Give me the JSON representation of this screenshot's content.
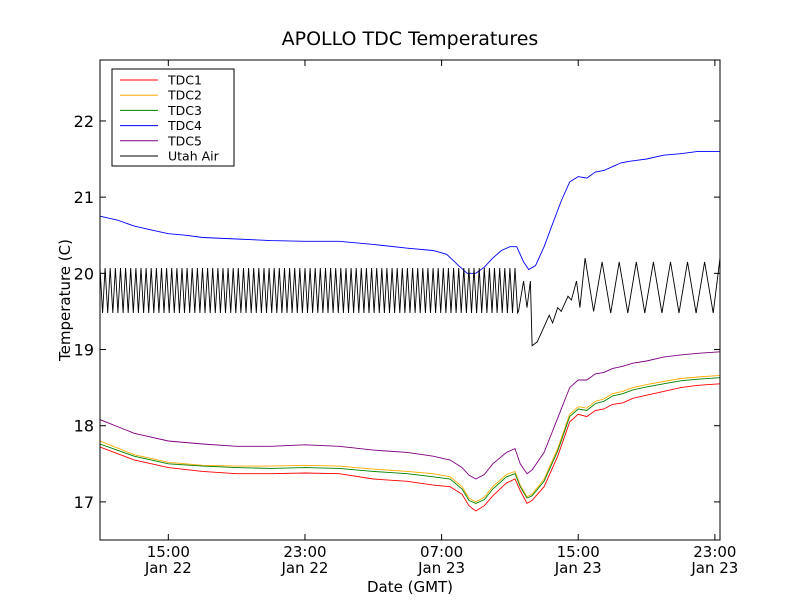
{
  "chart_data": {
    "type": "line",
    "title": "APOLLO TDC Temperatures",
    "xlabel": "Date (GMT)",
    "ylabel": "Temperature (C)",
    "x_unit": "hours since Jan 22 00:00 GMT",
    "xlim": [
      11.0,
      47.3
    ],
    "ylim": [
      16.5,
      22.8
    ],
    "x_ticks": [
      {
        "value": 15,
        "time": "15:00",
        "date": "Jan 22"
      },
      {
        "value": 23,
        "time": "23:00",
        "date": "Jan 22"
      },
      {
        "value": 31,
        "time": "07:00",
        "date": "Jan 23"
      },
      {
        "value": 39,
        "time": "15:00",
        "date": "Jan 23"
      },
      {
        "value": 47,
        "time": "23:00",
        "date": "Jan 23"
      }
    ],
    "y_ticks": [
      "17",
      "18",
      "19",
      "20",
      "21",
      "22"
    ],
    "legend_position": "top-left",
    "series": [
      {
        "name": "TDC1",
        "color": "#ff0000",
        "points": [
          [
            11.0,
            17.72
          ],
          [
            13,
            17.55
          ],
          [
            15,
            17.45
          ],
          [
            17,
            17.4
          ],
          [
            19,
            17.37
          ],
          [
            21,
            17.37
          ],
          [
            23,
            17.38
          ],
          [
            25,
            17.37
          ],
          [
            27,
            17.3
          ],
          [
            29,
            17.27
          ],
          [
            30.5,
            17.22
          ],
          [
            31.5,
            17.2
          ],
          [
            32.2,
            17.1
          ],
          [
            32.6,
            16.95
          ],
          [
            33,
            16.88
          ],
          [
            33.5,
            16.95
          ],
          [
            34,
            17.08
          ],
          [
            34.8,
            17.25
          ],
          [
            35.3,
            17.3
          ],
          [
            35.6,
            17.15
          ],
          [
            36,
            16.98
          ],
          [
            36.3,
            17.02
          ],
          [
            37,
            17.2
          ],
          [
            37.8,
            17.6
          ],
          [
            38.5,
            18.05
          ],
          [
            39,
            18.15
          ],
          [
            39.5,
            18.12
          ],
          [
            40,
            18.2
          ],
          [
            40.5,
            18.22
          ],
          [
            41,
            18.28
          ],
          [
            41.6,
            18.3
          ],
          [
            42.2,
            18.36
          ],
          [
            43,
            18.4
          ],
          [
            44,
            18.45
          ],
          [
            45,
            18.5
          ],
          [
            46,
            18.53
          ],
          [
            47.3,
            18.55
          ]
        ]
      },
      {
        "name": "TDC2",
        "color": "#ffaa00",
        "points": [
          [
            11.0,
            17.8
          ],
          [
            13,
            17.62
          ],
          [
            15,
            17.52
          ],
          [
            17,
            17.48
          ],
          [
            19,
            17.47
          ],
          [
            21,
            17.47
          ],
          [
            23,
            17.48
          ],
          [
            25,
            17.47
          ],
          [
            27,
            17.43
          ],
          [
            29,
            17.4
          ],
          [
            30.5,
            17.37
          ],
          [
            31.5,
            17.33
          ],
          [
            32.2,
            17.2
          ],
          [
            32.6,
            17.05
          ],
          [
            33,
            17.0
          ],
          [
            33.5,
            17.06
          ],
          [
            34,
            17.2
          ],
          [
            34.8,
            17.36
          ],
          [
            35.3,
            17.4
          ],
          [
            35.6,
            17.22
          ],
          [
            36,
            17.07
          ],
          [
            36.3,
            17.1
          ],
          [
            37,
            17.3
          ],
          [
            37.8,
            17.7
          ],
          [
            38.5,
            18.15
          ],
          [
            39,
            18.25
          ],
          [
            39.5,
            18.23
          ],
          [
            40,
            18.32
          ],
          [
            40.5,
            18.35
          ],
          [
            41,
            18.42
          ],
          [
            41.6,
            18.45
          ],
          [
            42.2,
            18.5
          ],
          [
            43,
            18.54
          ],
          [
            44,
            18.58
          ],
          [
            45,
            18.62
          ],
          [
            46,
            18.64
          ],
          [
            47.3,
            18.66
          ]
        ]
      },
      {
        "name": "TDC3",
        "color": "#008000",
        "points": [
          [
            11.0,
            17.76
          ],
          [
            13,
            17.6
          ],
          [
            15,
            17.5
          ],
          [
            17,
            17.47
          ],
          [
            19,
            17.45
          ],
          [
            21,
            17.44
          ],
          [
            23,
            17.45
          ],
          [
            25,
            17.44
          ],
          [
            27,
            17.4
          ],
          [
            29,
            17.37
          ],
          [
            30.5,
            17.33
          ],
          [
            31.5,
            17.3
          ],
          [
            32.2,
            17.17
          ],
          [
            32.6,
            17.02
          ],
          [
            33,
            16.98
          ],
          [
            33.5,
            17.03
          ],
          [
            34,
            17.17
          ],
          [
            34.8,
            17.33
          ],
          [
            35.3,
            17.37
          ],
          [
            35.6,
            17.2
          ],
          [
            36,
            17.05
          ],
          [
            36.3,
            17.08
          ],
          [
            37,
            17.27
          ],
          [
            37.8,
            17.67
          ],
          [
            38.5,
            18.12
          ],
          [
            39,
            18.22
          ],
          [
            39.5,
            18.2
          ],
          [
            40,
            18.29
          ],
          [
            40.5,
            18.32
          ],
          [
            41,
            18.39
          ],
          [
            41.6,
            18.42
          ],
          [
            42.2,
            18.47
          ],
          [
            43,
            18.51
          ],
          [
            44,
            18.55
          ],
          [
            45,
            18.59
          ],
          [
            46,
            18.61
          ],
          [
            47.3,
            18.63
          ]
        ]
      },
      {
        "name": "TDC4",
        "color": "#0000ff",
        "points": [
          [
            11.0,
            20.75
          ],
          [
            12,
            20.7
          ],
          [
            13,
            20.62
          ],
          [
            14,
            20.57
          ],
          [
            15,
            20.52
          ],
          [
            16,
            20.5
          ],
          [
            17,
            20.47
          ],
          [
            19,
            20.45
          ],
          [
            21,
            20.43
          ],
          [
            23,
            20.42
          ],
          [
            25,
            20.42
          ],
          [
            27,
            20.38
          ],
          [
            29,
            20.33
          ],
          [
            30.5,
            20.3
          ],
          [
            31.3,
            20.25
          ],
          [
            32,
            20.1
          ],
          [
            32.5,
            20.0
          ],
          [
            33,
            20.0
          ],
          [
            33.5,
            20.08
          ],
          [
            34,
            20.2
          ],
          [
            34.5,
            20.3
          ],
          [
            35,
            20.35
          ],
          [
            35.4,
            20.35
          ],
          [
            35.8,
            20.15
          ],
          [
            36.1,
            20.05
          ],
          [
            36.5,
            20.1
          ],
          [
            37,
            20.35
          ],
          [
            37.5,
            20.65
          ],
          [
            38,
            20.95
          ],
          [
            38.5,
            21.2
          ],
          [
            39,
            21.27
          ],
          [
            39.5,
            21.25
          ],
          [
            40,
            21.33
          ],
          [
            40.5,
            21.35
          ],
          [
            41,
            21.4
          ],
          [
            41.5,
            21.45
          ],
          [
            42,
            21.47
          ],
          [
            43,
            21.5
          ],
          [
            44,
            21.55
          ],
          [
            45,
            21.57
          ],
          [
            46,
            21.6
          ],
          [
            47.3,
            21.6
          ]
        ]
      },
      {
        "name": "TDC5",
        "color": "#800080",
        "points": [
          [
            11.0,
            18.08
          ],
          [
            13,
            17.9
          ],
          [
            15,
            17.8
          ],
          [
            17,
            17.76
          ],
          [
            19,
            17.73
          ],
          [
            21,
            17.73
          ],
          [
            23,
            17.75
          ],
          [
            25,
            17.73
          ],
          [
            27,
            17.68
          ],
          [
            29,
            17.65
          ],
          [
            30.5,
            17.6
          ],
          [
            31.5,
            17.55
          ],
          [
            32.2,
            17.45
          ],
          [
            32.6,
            17.35
          ],
          [
            33,
            17.3
          ],
          [
            33.5,
            17.36
          ],
          [
            34,
            17.5
          ],
          [
            34.8,
            17.65
          ],
          [
            35.3,
            17.7
          ],
          [
            35.6,
            17.5
          ],
          [
            36,
            17.37
          ],
          [
            36.3,
            17.42
          ],
          [
            37,
            17.65
          ],
          [
            37.8,
            18.1
          ],
          [
            38.5,
            18.5
          ],
          [
            39,
            18.6
          ],
          [
            39.5,
            18.6
          ],
          [
            40,
            18.68
          ],
          [
            40.5,
            18.7
          ],
          [
            41,
            18.75
          ],
          [
            41.6,
            18.78
          ],
          [
            42.2,
            18.82
          ],
          [
            43,
            18.85
          ],
          [
            44,
            18.9
          ],
          [
            45,
            18.93
          ],
          [
            46,
            18.95
          ],
          [
            47.3,
            18.97
          ]
        ]
      },
      {
        "name": "Utah Air",
        "color": "#000000",
        "oscillation": {
          "x_start": 11.0,
          "x_end": 35.5,
          "low": 19.48,
          "high": 20.07,
          "period_hours": 0.3
        },
        "points": [
          [
            35.5,
            19.5
          ],
          [
            35.8,
            19.9
          ],
          [
            36.0,
            19.55
          ],
          [
            36.2,
            19.9
          ],
          [
            36.3,
            19.05
          ],
          [
            36.6,
            19.1
          ],
          [
            37.0,
            19.3
          ],
          [
            37.3,
            19.45
          ],
          [
            37.5,
            19.35
          ],
          [
            37.8,
            19.55
          ],
          [
            38.0,
            19.5
          ],
          [
            38.4,
            19.7
          ],
          [
            38.6,
            19.65
          ],
          [
            38.9,
            19.9
          ],
          [
            39.1,
            19.55
          ],
          [
            39.4,
            20.2
          ],
          [
            39.9,
            19.5
          ],
          [
            40.4,
            20.15
          ],
          [
            40.9,
            19.48
          ],
          [
            41.4,
            20.15
          ],
          [
            41.9,
            19.48
          ],
          [
            42.4,
            20.15
          ],
          [
            42.9,
            19.48
          ],
          [
            43.4,
            20.15
          ],
          [
            43.9,
            19.48
          ],
          [
            44.4,
            20.15
          ],
          [
            44.9,
            19.48
          ],
          [
            45.4,
            20.15
          ],
          [
            45.9,
            19.48
          ],
          [
            46.4,
            20.15
          ],
          [
            46.9,
            19.48
          ],
          [
            47.3,
            20.2
          ]
        ]
      }
    ]
  }
}
